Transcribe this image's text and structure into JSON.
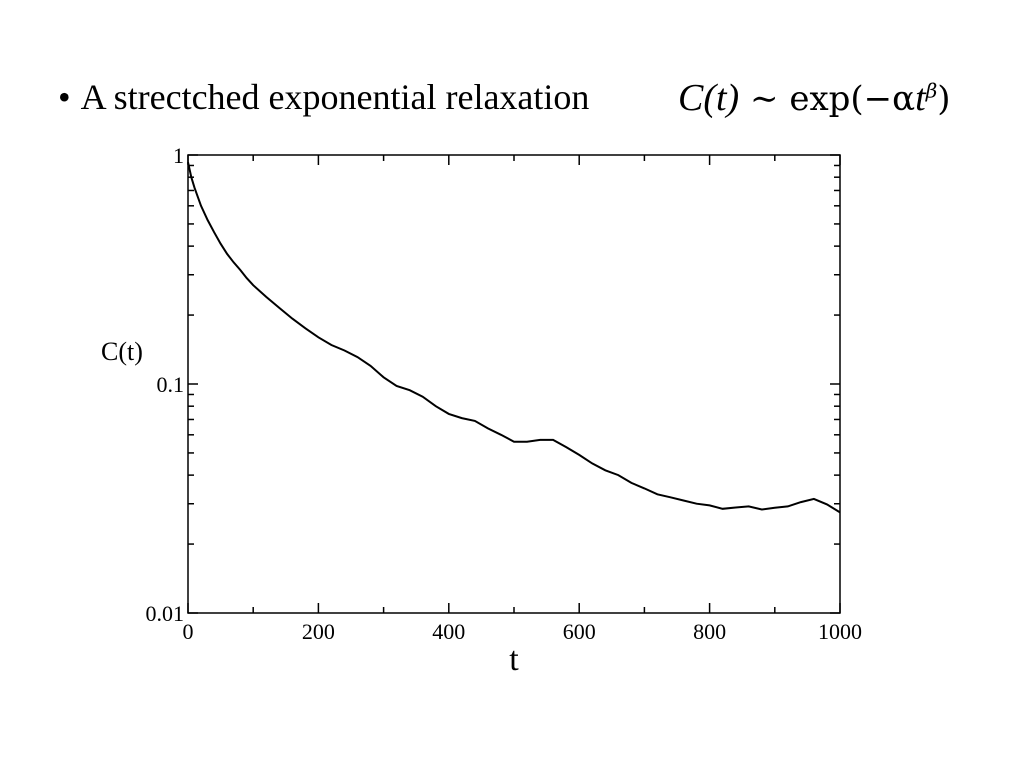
{
  "heading": {
    "bullet": "•",
    "text": "A strectched exponential relaxation",
    "formula_lhs": "C(t)",
    "formula_op": "∼",
    "formula_func": "exp(−α",
    "formula_var": "t",
    "formula_exp": "β",
    "formula_close": ")"
  },
  "chart_data": {
    "type": "line",
    "title": "",
    "xlabel": "t",
    "ylabel": "C(t)",
    "xlim": [
      0,
      1000
    ],
    "ylim": [
      0.01,
      1
    ],
    "yscale": "log",
    "grid": false,
    "legend": "none",
    "x_ticks": [
      0,
      200,
      400,
      600,
      800,
      1000
    ],
    "x_minor_ticks": [
      100,
      300,
      500,
      700,
      900
    ],
    "y_ticks": [
      0.01,
      0.1,
      1
    ],
    "x_tick_labels": [
      "0",
      "200",
      "400",
      "600",
      "800",
      "1000"
    ],
    "y_tick_labels": [
      "0.01",
      "0.1",
      "1"
    ],
    "line_color": "#000000",
    "series": [
      {
        "x": [
          0,
          5,
          10,
          20,
          30,
          40,
          50,
          60,
          70,
          80,
          90,
          100,
          120,
          140,
          160,
          180,
          200,
          220,
          240,
          260,
          280,
          300,
          320,
          340,
          360,
          380,
          400,
          420,
          440,
          460,
          480,
          500,
          520,
          540,
          560,
          580,
          600,
          620,
          640,
          660,
          680,
          700,
          720,
          740,
          760,
          780,
          800,
          820,
          840,
          860,
          880,
          900,
          920,
          940,
          960,
          980,
          1000
        ],
        "y": [
          0.93,
          0.8,
          0.72,
          0.6,
          0.52,
          0.46,
          0.41,
          0.37,
          0.34,
          0.315,
          0.29,
          0.27,
          0.24,
          0.215,
          0.193,
          0.175,
          0.16,
          0.148,
          0.14,
          0.131,
          0.12,
          0.107,
          0.098,
          0.094,
          0.088,
          0.08,
          0.074,
          0.071,
          0.069,
          0.064,
          0.06,
          0.056,
          0.056,
          0.057,
          0.057,
          0.053,
          0.049,
          0.045,
          0.042,
          0.04,
          0.037,
          0.035,
          0.033,
          0.032,
          0.031,
          0.03,
          0.0295,
          0.0285,
          0.0289,
          0.0292,
          0.0283,
          0.0288,
          0.0292,
          0.0305,
          0.0315,
          0.0298,
          0.0275
        ]
      }
    ]
  }
}
